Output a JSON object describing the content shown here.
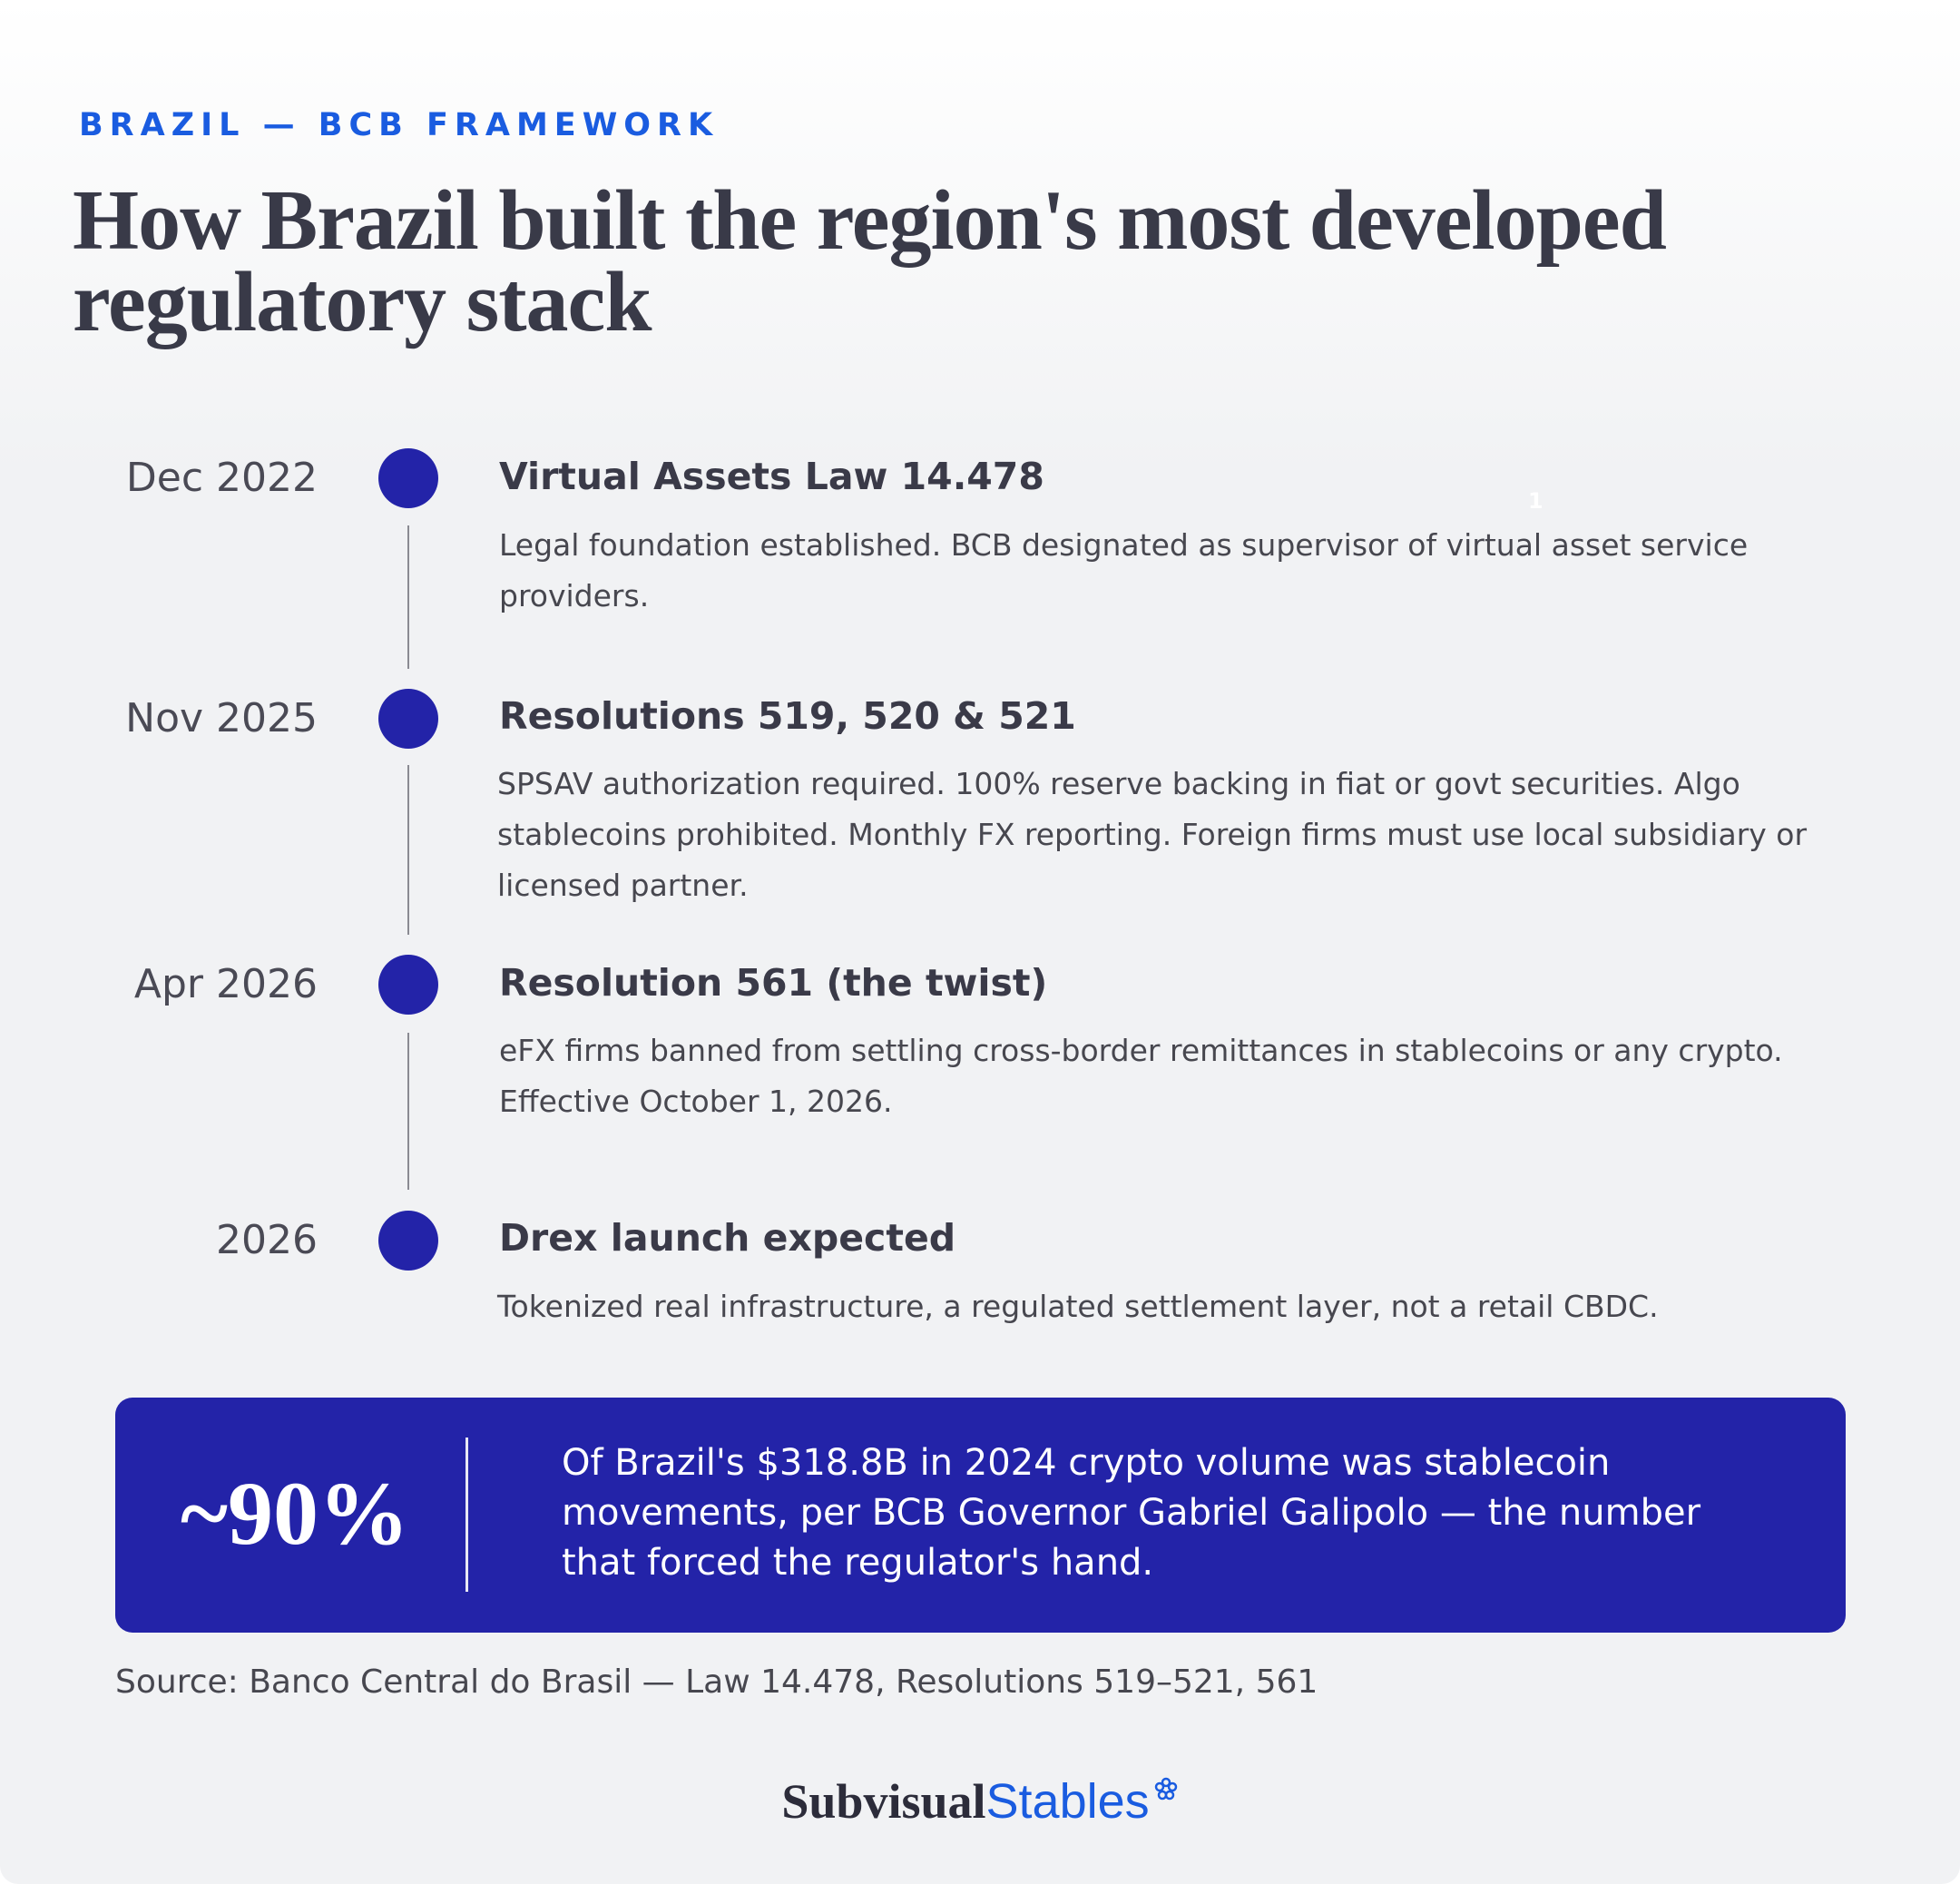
{
  "header": {
    "eyebrow": "BRAZIL — BCB FRAMEWORK",
    "title": "How Brazil built the region's most developed regulatory stack"
  },
  "timeline": [
    {
      "date": "Dec 2022",
      "title": "Virtual Assets Law 14.478",
      "note": "1",
      "description": "Legal foundation established. BCB designated as supervisor of virtual asset service providers."
    },
    {
      "date": "Nov 2025",
      "title": "Resolutions 519, 520 & 521",
      "description": "SPSAV authorization required. 100% reserve backing in fiat or govt securities. Algo stablecoins prohibited. Monthly FX reporting. Foreign firms must use local subsidiary or licensed partner."
    },
    {
      "date": "Apr 2026",
      "title": "Resolution 561 (the twist)",
      "description": "eFX firms banned from settling cross-border remittances in stablecoins or any crypto. Effective October 1, 2026."
    },
    {
      "date": "2026",
      "title": "Drex launch expected",
      "description": "Tokenized real infrastructure, a regulated settlement layer, not a retail CBDC."
    }
  ],
  "callout": {
    "stat": "~90%",
    "text": "Of Brazil's $318.8B in 2024 crypto volume was stablecoin movements, per BCB Governor Gabriel Galipolo — the number that forced the regulator's hand."
  },
  "source": "Source: Banco Central do Brasil — Law 14.478, Resolutions 519–521, 561",
  "logo": {
    "primary": "Subvisual",
    "secondary": "Stables"
  }
}
